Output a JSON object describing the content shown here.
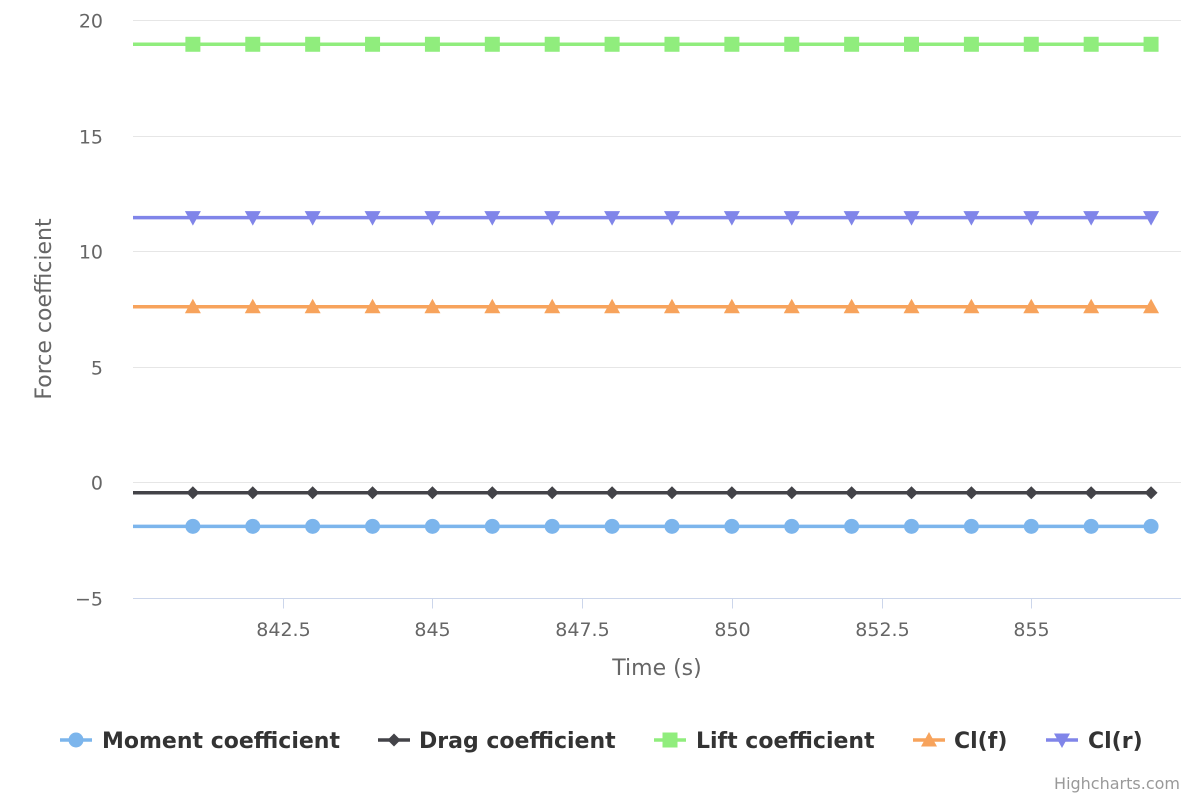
{
  "chart_data": {
    "type": "line",
    "title": "",
    "xlabel": "Time (s)",
    "ylabel": "Force coefficient",
    "xlim": [
      840,
      857.5
    ],
    "ylim": [
      -5,
      20
    ],
    "x_ticks": [
      842.5,
      845,
      847.5,
      850,
      852.5,
      855
    ],
    "x_tick_labels": [
      "842.5",
      "845",
      "847.5",
      "850",
      "852.5",
      "855"
    ],
    "y_ticks": [
      -5,
      0,
      5,
      10,
      15,
      20
    ],
    "y_tick_labels": [
      "−5",
      "0",
      "5",
      "10",
      "15",
      "20"
    ],
    "grid": "horizontal",
    "legend_position": "bottom",
    "x": [
      841,
      842,
      843,
      844,
      845,
      846,
      847,
      848,
      849,
      850,
      851,
      852,
      853,
      854,
      855,
      856,
      857
    ],
    "series": [
      {
        "name": "Moment coefficient",
        "color": "#7cb5ec",
        "marker": "circle",
        "values": [
          -1.9,
          -1.9,
          -1.9,
          -1.9,
          -1.9,
          -1.9,
          -1.9,
          -1.9,
          -1.9,
          -1.9,
          -1.9,
          -1.9,
          -1.9,
          -1.9,
          -1.9,
          -1.9,
          -1.9
        ]
      },
      {
        "name": "Drag coefficient",
        "color": "#434348",
        "marker": "diamond",
        "values": [
          -0.45,
          -0.45,
          -0.45,
          -0.45,
          -0.45,
          -0.45,
          -0.45,
          -0.45,
          -0.45,
          -0.45,
          -0.45,
          -0.45,
          -0.45,
          -0.45,
          -0.45,
          -0.45,
          -0.45
        ]
      },
      {
        "name": "Lift coefficient",
        "color": "#90ed7d",
        "marker": "square",
        "values": [
          18.95,
          18.95,
          18.95,
          18.95,
          18.95,
          18.95,
          18.95,
          18.95,
          18.95,
          18.95,
          18.95,
          18.95,
          18.95,
          18.95,
          18.95,
          18.95,
          18.95
        ]
      },
      {
        "name": "Cl(f)",
        "color": "#f7a35c",
        "marker": "triangle",
        "values": [
          7.6,
          7.6,
          7.6,
          7.6,
          7.6,
          7.6,
          7.6,
          7.6,
          7.6,
          7.6,
          7.6,
          7.6,
          7.6,
          7.6,
          7.6,
          7.6,
          7.6
        ]
      },
      {
        "name": "Cl(r)",
        "color": "#8085e9",
        "marker": "triangle-down",
        "values": [
          11.45,
          11.45,
          11.45,
          11.45,
          11.45,
          11.45,
          11.45,
          11.45,
          11.45,
          11.45,
          11.45,
          11.45,
          11.45,
          11.45,
          11.45,
          11.45,
          11.45
        ]
      }
    ]
  },
  "credits": "Highcharts.com",
  "colors": {
    "grid": "#e6e6e6",
    "axis_line": "#ccd6eb",
    "text": "#666666"
  }
}
